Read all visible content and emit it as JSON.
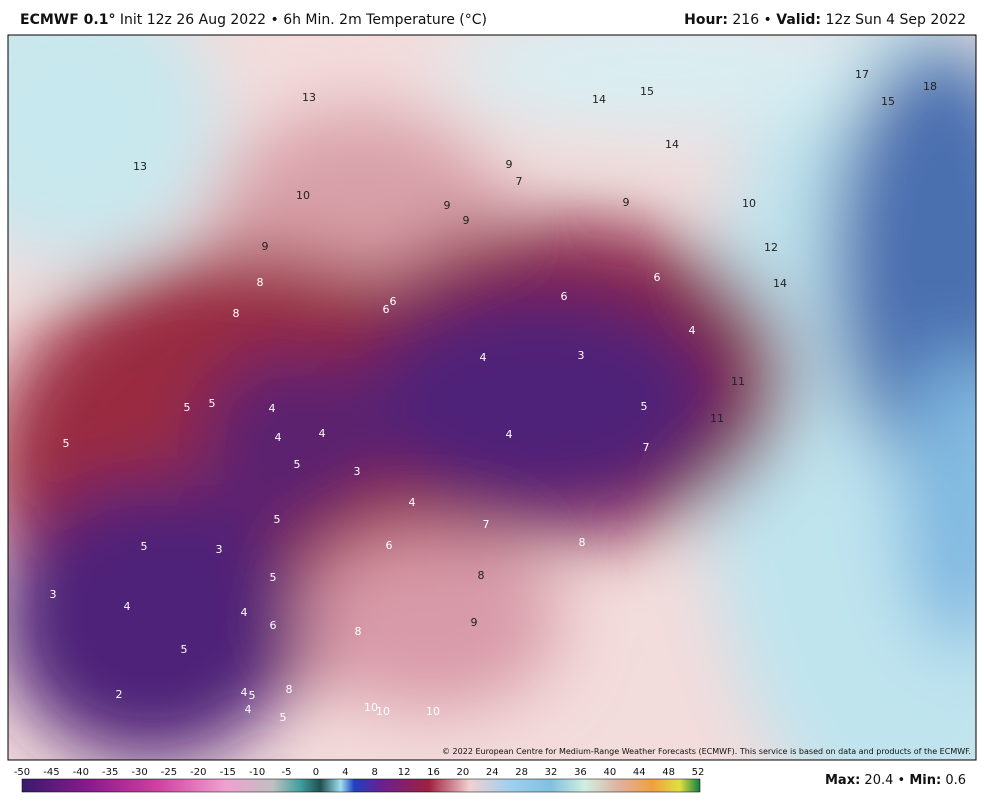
{
  "header": {
    "model": "ECMWF 0.1°",
    "description": "Init 12z 26 Aug 2022 • 6h Min. 2m Temperature (°C)",
    "hour_label": "Hour:",
    "hour": 216,
    "valid_label": "Valid:",
    "valid": "12z Sun 4 Sep 2022"
  },
  "map_labels": [
    13,
    14,
    15,
    17,
    18,
    15,
    13,
    14,
    9,
    7,
    10,
    9,
    9,
    10,
    9,
    9,
    12,
    6,
    8,
    14,
    6,
    6,
    6,
    8,
    4,
    3,
    4,
    11,
    5,
    5,
    4,
    5,
    11,
    5,
    4,
    4,
    4,
    7,
    5,
    3,
    4,
    7,
    5,
    8,
    5,
    3,
    6,
    5,
    8,
    3,
    4,
    4,
    6,
    8,
    9,
    5,
    2,
    4,
    5,
    8,
    4,
    5,
    10,
    10,
    10
  ],
  "copyright": "© 2022 European Centre for Medium-Range Weather Forecasts (ECMWF). This service is based on data and products of the ECMWF.",
  "colorbar": {
    "ticks": [
      -50,
      -45,
      -40,
      -35,
      -30,
      -25,
      -20,
      -15,
      -10,
      -5,
      0,
      4,
      8,
      12,
      16,
      20,
      24,
      28,
      32,
      36,
      40,
      44,
      48,
      52
    ]
  },
  "stats": {
    "max_label": "Max:",
    "max": 20.4,
    "min_label": "Min:",
    "min": 0.6
  }
}
